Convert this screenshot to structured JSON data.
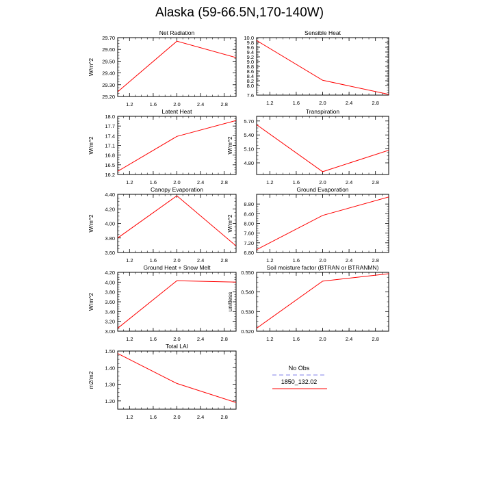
{
  "page": {
    "title": "Alaska (59-66.5N,170-140W)"
  },
  "legend": {
    "entries": [
      {
        "label": "No Obs",
        "color": "#9999ee",
        "dashed": true
      },
      {
        "label": "1850_132.02",
        "color": "#ff0000",
        "dashed": false
      }
    ]
  },
  "chart_data": [
    {
      "type": "line",
      "title": "Net Radiation",
      "xlabel": "",
      "ylabel": "W/m^2",
      "xlim": [
        1.0,
        3.0
      ],
      "ylim": [
        29.2,
        29.7
      ],
      "xticks": [
        "1.2",
        "1.6",
        "2.0",
        "2.4",
        "2.8"
      ],
      "yticks": [
        "29.20",
        "29.30",
        "29.40",
        "29.50",
        "29.60",
        "29.70"
      ],
      "series": [
        {
          "color": "#ff0000",
          "x": [
            1,
            2,
            3
          ],
          "y": [
            29.24,
            29.67,
            29.53
          ]
        }
      ]
    },
    {
      "type": "line",
      "title": "Sensible Heat",
      "xlabel": "",
      "ylabel": "",
      "xlim": [
        1.0,
        3.0
      ],
      "ylim": [
        7.6,
        10.0
      ],
      "xticks": [
        "1.2",
        "1.6",
        "2.0",
        "2.4",
        "2.8"
      ],
      "yticks": [
        "7.6",
        "8.0",
        "8.2",
        "8.4",
        "8.6",
        "8.8",
        "9.0",
        "9.2",
        "9.4",
        "9.6",
        "9.8",
        "10.0"
      ],
      "series": [
        {
          "color": "#ff0000",
          "x": [
            1,
            2,
            3
          ],
          "y": [
            9.88,
            8.22,
            7.63
          ]
        }
      ]
    },
    {
      "type": "line",
      "title": "Latent Heat",
      "xlabel": "",
      "ylabel": "W/m^2",
      "xlim": [
        1.0,
        3.0
      ],
      "ylim": [
        16.2,
        18.0
      ],
      "xticks": [
        "1.2",
        "1.6",
        "2.0",
        "2.4",
        "2.8"
      ],
      "yticks": [
        "16.2",
        "16.5",
        "16.8",
        "17.1",
        "17.4",
        "17.7",
        "18.0"
      ],
      "series": [
        {
          "color": "#ff0000",
          "x": [
            1,
            2,
            3
          ],
          "y": [
            16.3,
            17.38,
            17.87
          ]
        }
      ]
    },
    {
      "type": "line",
      "title": "Transpiration",
      "xlabel": "",
      "ylabel": "W/m^2",
      "xlim": [
        1.0,
        3.0
      ],
      "ylim": [
        4.55,
        5.8
      ],
      "xticks": [
        "1.2",
        "1.6",
        "2.0",
        "2.4",
        "2.8"
      ],
      "yticks": [
        "4.80",
        "5.10",
        "5.40",
        "5.70"
      ],
      "series": [
        {
          "color": "#ff0000",
          "x": [
            1,
            2,
            3
          ],
          "y": [
            5.62,
            4.61,
            5.07
          ]
        }
      ]
    },
    {
      "type": "line",
      "title": "Canopy Evaporation",
      "xlabel": "",
      "ylabel": "W/m^2",
      "xlim": [
        1.0,
        3.0
      ],
      "ylim": [
        3.6,
        4.4
      ],
      "xticks": [
        "1.2",
        "1.6",
        "2.0",
        "2.4",
        "2.8"
      ],
      "yticks": [
        "3.60",
        "3.80",
        "4.00",
        "4.20",
        "4.40"
      ],
      "series": [
        {
          "color": "#ff0000",
          "x": [
            1,
            2,
            3
          ],
          "y": [
            3.8,
            4.38,
            3.69
          ]
        }
      ]
    },
    {
      "type": "line",
      "title": "Ground Evaporation",
      "xlabel": "",
      "ylabel": "W/m^2",
      "xlim": [
        1.0,
        3.0
      ],
      "ylim": [
        6.8,
        9.2
      ],
      "xticks": [
        "1.2",
        "1.6",
        "2.0",
        "2.4",
        "2.8"
      ],
      "yticks": [
        "6.80",
        "7.20",
        "7.60",
        "8.00",
        "8.40",
        "8.80"
      ],
      "series": [
        {
          "color": "#ff0000",
          "x": [
            1,
            2,
            3
          ],
          "y": [
            6.92,
            8.33,
            9.09
          ]
        }
      ]
    },
    {
      "type": "line",
      "title": "Ground Heat + Snow Melt",
      "xlabel": "",
      "ylabel": "W/m^2",
      "xlim": [
        1.0,
        3.0
      ],
      "ylim": [
        3.0,
        4.2
      ],
      "xticks": [
        "1.2",
        "1.6",
        "2.0",
        "2.4",
        "2.8"
      ],
      "yticks": [
        "3.00",
        "3.20",
        "3.40",
        "3.60",
        "3.80",
        "4.00",
        "4.20"
      ],
      "series": [
        {
          "color": "#ff0000",
          "x": [
            1,
            2,
            3
          ],
          "y": [
            3.06,
            4.03,
            4.0
          ]
        }
      ]
    },
    {
      "type": "line",
      "title": "Soil moisture factor (BTRAN or BTRANMN)",
      "xlabel": "",
      "ylabel": "unitless",
      "xlim": [
        1.0,
        3.0
      ],
      "ylim": [
        0.52,
        0.55
      ],
      "xticks": [
        "1.2",
        "1.6",
        "2.0",
        "2.4",
        "2.8"
      ],
      "yticks": [
        "0.520",
        "0.530",
        "0.540",
        "0.550"
      ],
      "series": [
        {
          "color": "#ff0000",
          "x": [
            1,
            2,
            3
          ],
          "y": [
            0.5215,
            0.5455,
            0.5493
          ]
        }
      ]
    },
    {
      "type": "line",
      "title": "Total LAI",
      "xlabel": "",
      "ylabel": "m2/m2",
      "xlim": [
        1.0,
        3.0
      ],
      "ylim": [
        1.15,
        1.5
      ],
      "xticks": [
        "1.2",
        "1.6",
        "2.0",
        "2.4",
        "2.8"
      ],
      "yticks": [
        "1.20",
        "1.30",
        "1.40",
        "1.50"
      ],
      "series": [
        {
          "color": "#ff0000",
          "x": [
            1,
            2,
            3
          ],
          "y": [
            1.485,
            1.305,
            1.19
          ]
        }
      ]
    }
  ]
}
